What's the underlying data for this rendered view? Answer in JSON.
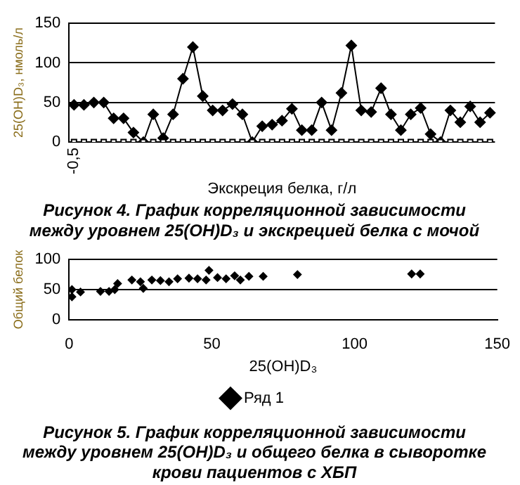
{
  "chart_data": [
    {
      "type": "line",
      "title": "Рисунок 4. График корреляционной зависимости между уровнем 25(OH)D₃ и экскрецией белка с мочой",
      "xlabel": "Экскреция белка, г/л",
      "ylabel": "25(OH)D₃, нмоль/л",
      "categories": [
        "-0,5",
        null,
        null,
        null,
        null,
        null,
        null,
        null,
        null,
        null,
        null,
        null,
        null,
        null,
        null,
        null,
        null,
        null,
        null,
        null,
        null,
        null,
        null,
        null,
        null,
        null,
        null,
        null,
        null,
        null,
        null,
        null,
        null,
        null,
        null,
        null,
        null,
        null,
        null,
        null,
        null,
        null,
        null
      ],
      "series": [
        {
          "color": "#000000",
          "marker": "diamond",
          "values": [
            47,
            47,
            50,
            50,
            30,
            30,
            12,
            0,
            35,
            5,
            35,
            80,
            120,
            58,
            40,
            40,
            48,
            35,
            0,
            20,
            22,
            27,
            42,
            15,
            15,
            50,
            15,
            62,
            122,
            40,
            38,
            68,
            35,
            15,
            35,
            43,
            10,
            0,
            40,
            25,
            45,
            25,
            37
          ]
        },
        {
          "type": "scatter",
          "color": "#000000",
          "marker": "square",
          "values": [
            0,
            0,
            0,
            0,
            0,
            0,
            0,
            0,
            0,
            0,
            0,
            0,
            0,
            0,
            0,
            0,
            0,
            0,
            0,
            0,
            0,
            0,
            0,
            0,
            0,
            0,
            0,
            0,
            0,
            0,
            0,
            0,
            0,
            0,
            0,
            0,
            0,
            0,
            0,
            0,
            0,
            0,
            0
          ]
        }
      ],
      "ylim": [
        0,
        150
      ],
      "yticks": [
        0,
        50,
        100,
        150
      ],
      "grid": "y",
      "legend": false
    },
    {
      "type": "scatter",
      "title": "Рисунок 5. График корреляционной зависимости между уровнем 25(OH)D₃ и общего белка в сыворотке крови пациентов с ХБП",
      "xlabel": "25(OH)D₃",
      "ylabel": "Общий белок",
      "marker": "diamond",
      "series": [
        {
          "name": "Ряд 1",
          "color": "#000000",
          "x": [
            1,
            1,
            4,
            11,
            14,
            16,
            17,
            22,
            25,
            26,
            29,
            32,
            35,
            38,
            42,
            45,
            48,
            49,
            52,
            55,
            58,
            60,
            63,
            68,
            80,
            120,
            123
          ],
          "values": [
            38,
            50,
            46,
            47,
            47,
            50,
            60,
            66,
            63,
            52,
            66,
            65,
            63,
            68,
            69,
            68,
            66,
            82,
            70,
            68,
            73,
            66,
            72,
            72,
            75,
            76,
            76
          ]
        }
      ],
      "xlim": [
        0,
        150
      ],
      "xticks": [
        0,
        50,
        100,
        150
      ],
      "ylim": [
        0,
        100
      ],
      "yticks": [
        0,
        50,
        100
      ],
      "grid": "y",
      "legend": "bottom"
    }
  ]
}
